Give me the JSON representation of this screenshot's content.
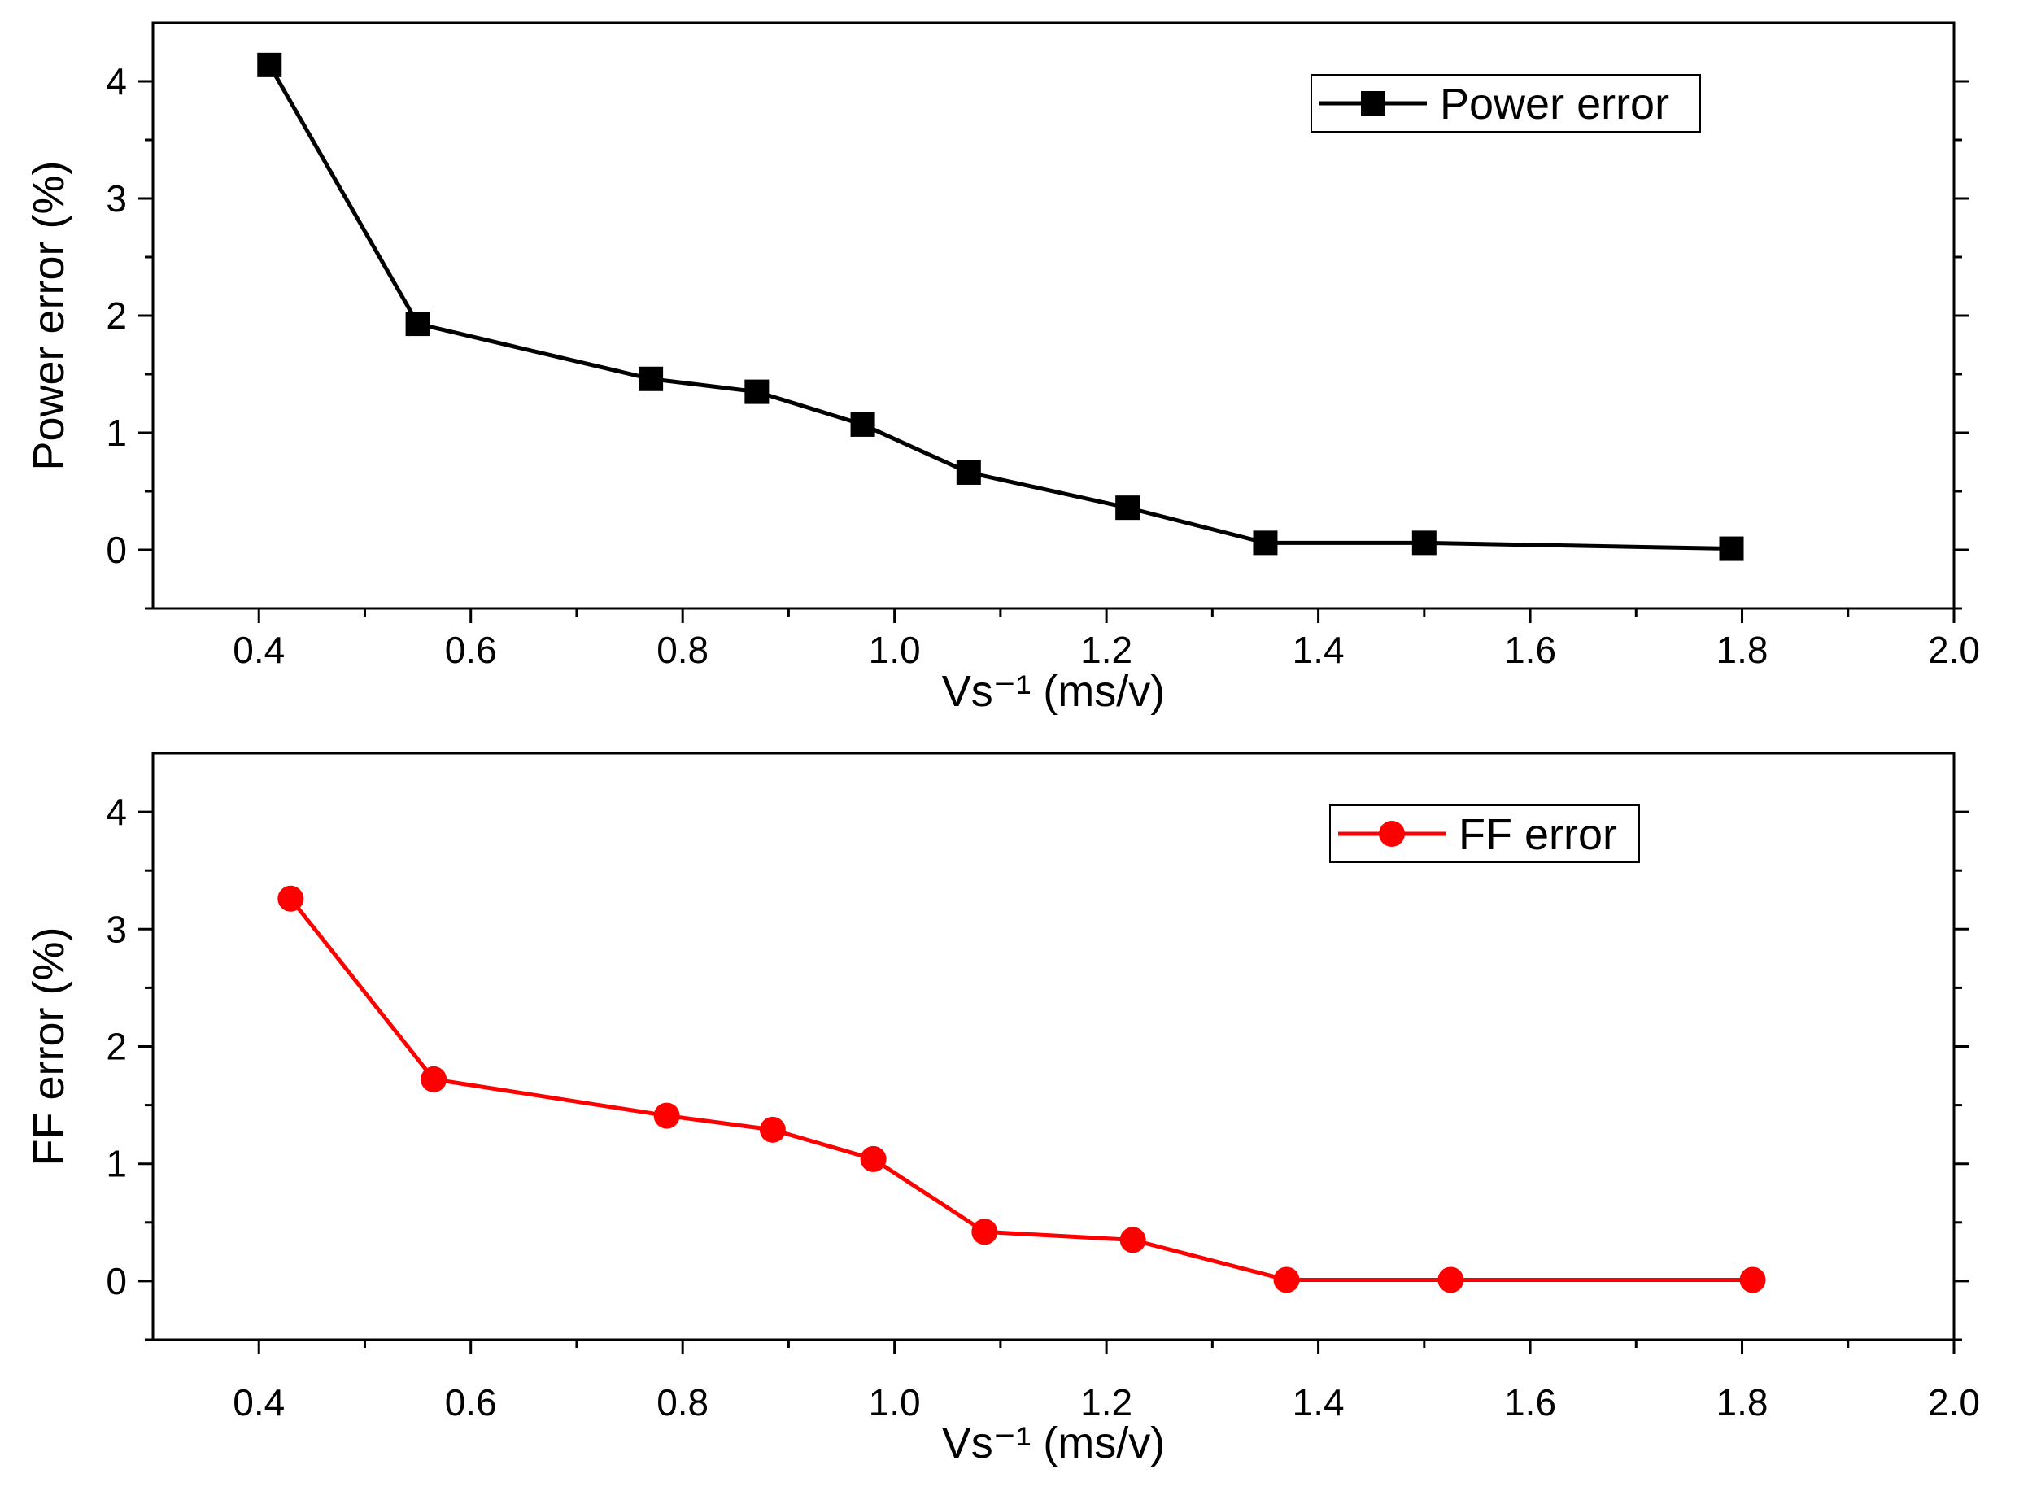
{
  "chart_data": [
    {
      "type": "line",
      "title": "",
      "xlabel": "Vs⁻¹ (ms/v)",
      "ylabel": "Power error (%)",
      "xlim": [
        0.3,
        2.0
      ],
      "ylim": [
        -0.5,
        4.5
      ],
      "xticks": [
        "0.4",
        "0.6",
        "0.8",
        "1.0",
        "1.2",
        "1.4",
        "1.6",
        "1.8",
        "2.0"
      ],
      "yticks": [
        "0",
        "1",
        "2",
        "3",
        "4"
      ],
      "legend": "top-right",
      "series": [
        {
          "name": "Power error",
          "color": "#000000",
          "marker": "square",
          "x": [
            0.41,
            0.55,
            0.77,
            0.87,
            0.97,
            1.07,
            1.22,
            1.35,
            1.5,
            1.79
          ],
          "y": [
            4.14,
            1.93,
            1.46,
            1.35,
            1.07,
            0.66,
            0.36,
            0.06,
            0.06,
            0.01
          ]
        }
      ]
    },
    {
      "type": "line",
      "title": "",
      "xlabel": "Vs⁻¹ (ms/v)",
      "ylabel": "FF error (%)",
      "xlim": [
        0.3,
        2.0
      ],
      "ylim": [
        -0.5,
        4.5
      ],
      "xticks": [
        "0.4",
        "0.6",
        "0.8",
        "1.0",
        "1.2",
        "1.4",
        "1.6",
        "1.8",
        "2.0"
      ],
      "yticks": [
        "0",
        "1",
        "2",
        "3",
        "4"
      ],
      "legend": "top-right",
      "series": [
        {
          "name": "FF error",
          "color": "#ff0000",
          "marker": "circle",
          "x": [
            0.43,
            0.565,
            0.785,
            0.885,
            0.98,
            1.085,
            1.225,
            1.37,
            1.525,
            1.81
          ],
          "y": [
            3.26,
            1.72,
            1.41,
            1.29,
            1.04,
            0.42,
            0.35,
            0.01,
            0.01,
            0.01
          ]
        }
      ]
    }
  ]
}
